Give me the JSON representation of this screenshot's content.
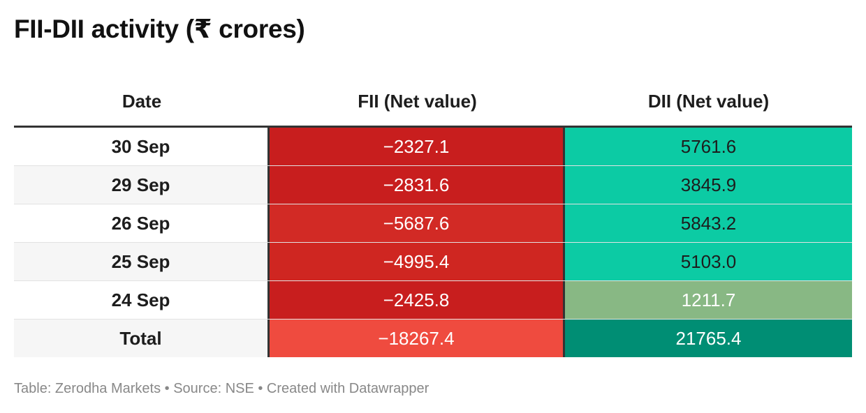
{
  "title": "FII-DII activity (₹ crores)",
  "chart_data": {
    "type": "table",
    "columns": [
      "Date",
      "FII (Net value)",
      "DII (Net value)"
    ],
    "rows": [
      {
        "date": "30 Sep",
        "fii": "−2327.1",
        "dii": "5761.6",
        "fii_value": -2327.1,
        "dii_value": 5761.6,
        "fii_color": "#c81e1e",
        "dii_color": "#0ccba4",
        "row_bg": "#ffffff"
      },
      {
        "date": "29 Sep",
        "fii": "−2831.6",
        "dii": "3845.9",
        "fii_value": -2831.6,
        "dii_value": 3845.9,
        "fii_color": "#c81e1e",
        "dii_color": "#0ccba4",
        "row_bg": "#f6f6f6"
      },
      {
        "date": "26 Sep",
        "fii": "−5687.6",
        "dii": "5843.2",
        "fii_value": -5687.6,
        "dii_value": 5843.2,
        "fii_color": "#d22a25",
        "dii_color": "#0ccba4",
        "row_bg": "#ffffff"
      },
      {
        "date": "25 Sep",
        "fii": "−4995.4",
        "dii": "5103.0",
        "fii_value": -4995.4,
        "dii_value": 5103.0,
        "fii_color": "#cf2621",
        "dii_color": "#0ccba4",
        "row_bg": "#f6f6f6"
      },
      {
        "date": "24 Sep",
        "fii": "−2425.8",
        "dii": "1211.7",
        "fii_value": -2425.8,
        "dii_value": 1211.7,
        "fii_color": "#c81e1e",
        "dii_color": "#88b884",
        "row_bg": "#ffffff"
      },
      {
        "date": "Total",
        "fii": "−18267.4",
        "dii": "21765.4",
        "fii_value": -18267.4,
        "dii_value": 21765.4,
        "fii_color": "#ef4b3f",
        "dii_color": "#008e74",
        "row_bg": "#f6f6f6"
      }
    ]
  },
  "colors": {
    "dark_text_on": "#1d1d1d",
    "light_text_on": "#ffffff"
  },
  "footer": {
    "text": "Table: Zerodha Markets • Source: NSE • Created with Datawrapper"
  }
}
